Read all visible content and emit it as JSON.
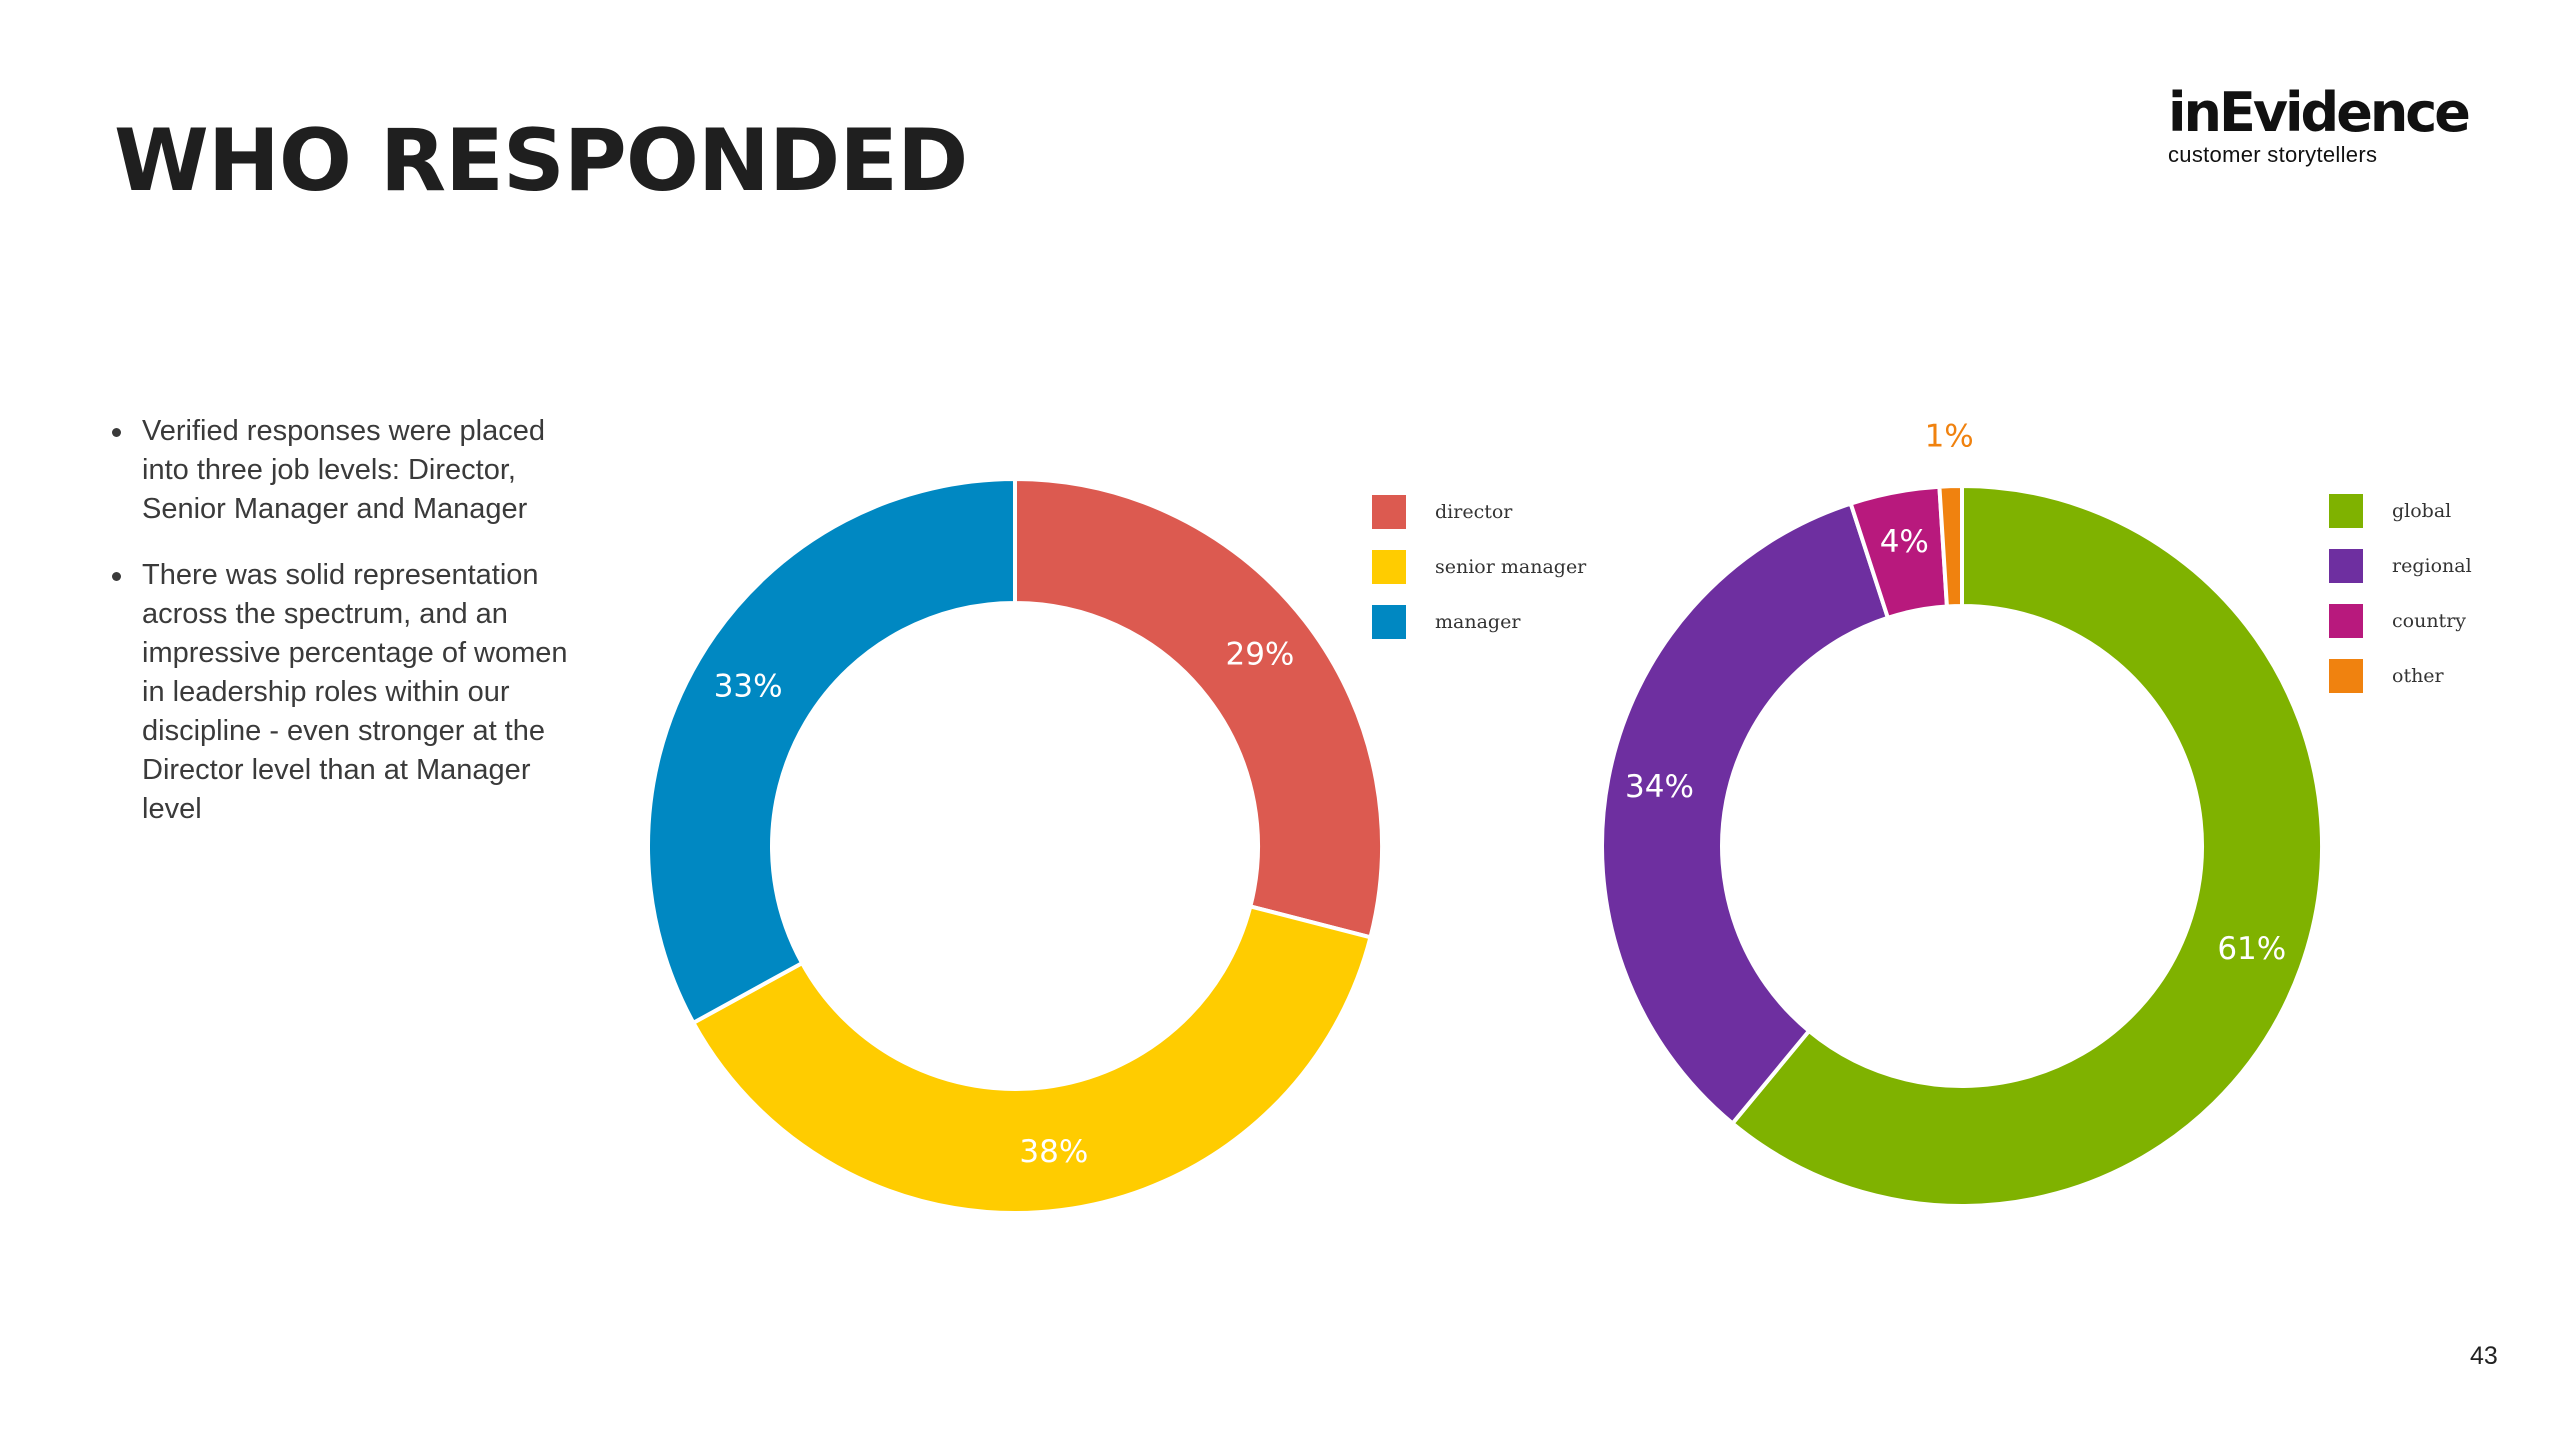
{
  "header": {
    "title": "WHO RESPONDED",
    "logo_word": "inEvidence",
    "logo_tagline": "customer storytellers"
  },
  "bullets": [
    "Verified responses were placed into three job levels: Director, Senior Manager and Manager",
    "There was solid representation across the spectrum, and an impressive percentage of women in leadership roles within our discipline - even stronger at the Director level than at Manager level"
  ],
  "chart_data": [
    {
      "type": "pie",
      "variant": "donut",
      "categories": [
        "director",
        "senior manager",
        "manager"
      ],
      "values": [
        29,
        38,
        33
      ],
      "labels": [
        "29%",
        "38%",
        "33%"
      ],
      "colors": [
        "#dc5a50",
        "#ffcc00",
        "#0088c2"
      ],
      "legend": "right",
      "title": ""
    },
    {
      "type": "pie",
      "variant": "donut",
      "categories": [
        "global",
        "regional",
        "country",
        "other"
      ],
      "values": [
        61,
        34,
        4,
        1
      ],
      "labels": [
        "61%",
        "34%",
        "4%",
        "1%"
      ],
      "colors": [
        "#7fb200",
        "#6e2fa0",
        "#b8197d",
        "#f0820f"
      ],
      "legend": "right",
      "title": ""
    }
  ],
  "footer": {
    "page_number": "43"
  }
}
